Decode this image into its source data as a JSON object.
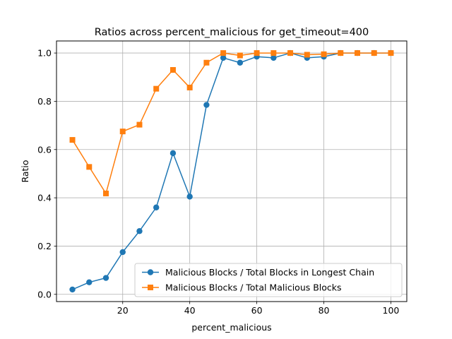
{
  "chart_data": {
    "type": "line",
    "title": "Ratios across percent_malicious for get_timeout=400",
    "xlabel": "percent_malicious",
    "ylabel": "Ratio",
    "xlim": [
      0.25,
      104.75
    ],
    "ylim": [
      -0.03,
      1.05
    ],
    "xticks": [
      20,
      40,
      60,
      80,
      100
    ],
    "yticks": [
      0.0,
      0.2,
      0.4,
      0.6,
      0.8,
      1.0
    ],
    "xtick_labels": [
      "20",
      "40",
      "60",
      "80",
      "100"
    ],
    "ytick_labels": [
      "0.0",
      "0.2",
      "0.4",
      "0.6",
      "0.8",
      "1.0"
    ],
    "grid": true,
    "legend_position": "lower-right",
    "x": [
      5,
      10,
      15,
      20,
      25,
      30,
      35,
      40,
      45,
      50,
      55,
      60,
      65,
      70,
      75,
      80,
      85,
      90,
      95,
      100
    ],
    "series": [
      {
        "name": "Malicious Blocks / Total Blocks in Longest Chain",
        "color": "#1f77b4",
        "marker": "circle",
        "values": [
          0.02,
          0.05,
          0.068,
          0.175,
          0.262,
          0.36,
          0.585,
          0.405,
          0.785,
          0.98,
          0.96,
          0.985,
          0.98,
          1.0,
          0.98,
          0.985,
          1.0,
          1.0,
          1.0,
          1.0
        ]
      },
      {
        "name": "Malicious Blocks / Total Malicious Blocks",
        "color": "#ff7f0e",
        "marker": "square",
        "values": [
          0.64,
          0.528,
          0.418,
          0.675,
          0.703,
          0.852,
          0.93,
          0.857,
          0.96,
          1.0,
          0.99,
          1.0,
          1.0,
          1.0,
          0.993,
          0.995,
          1.0,
          1.0,
          1.0,
          1.0
        ]
      }
    ]
  }
}
